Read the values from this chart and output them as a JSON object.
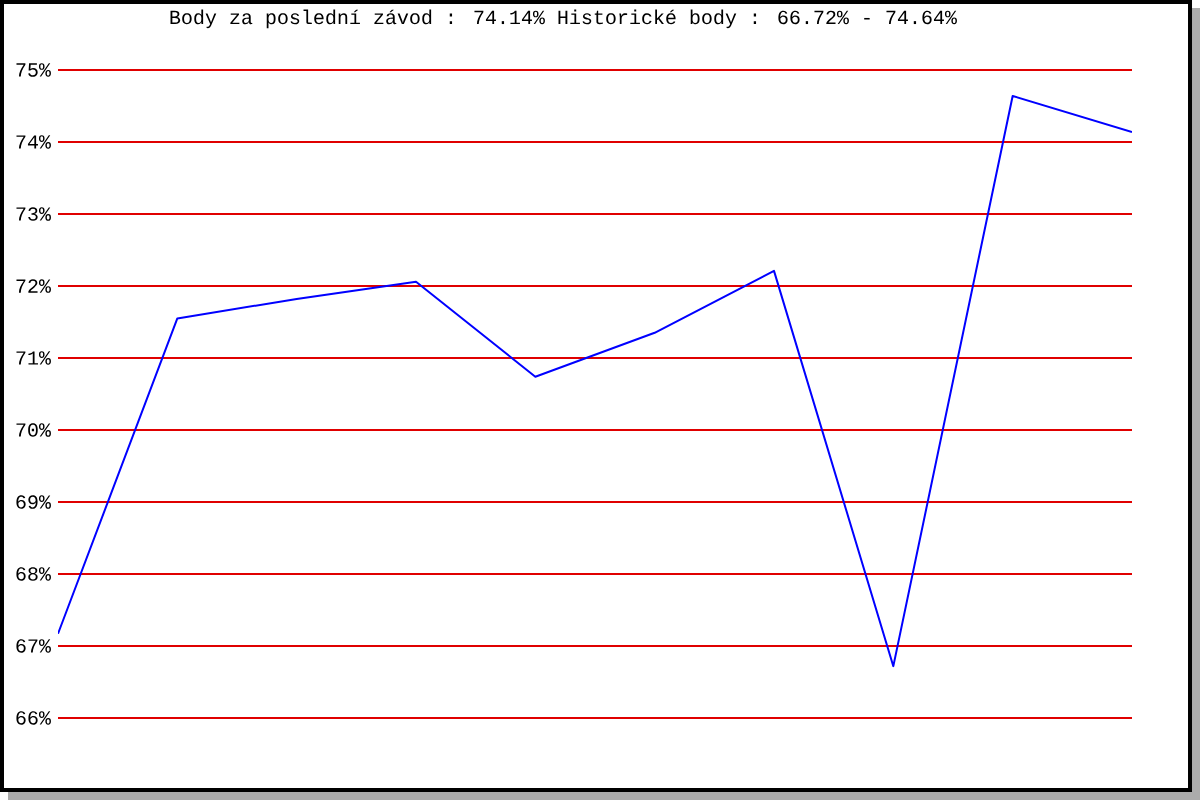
{
  "chart_data": {
    "type": "line",
    "title": "Body za poslední závod : 74.14%  Historické body : 66.72% - 74.64%",
    "categories": [
      null,
      null,
      null,
      null,
      null,
      null,
      null,
      null,
      null,
      null
    ],
    "series": [
      {
        "color": "#0000ff",
        "values": [
          67.17,
          71.55,
          71.82,
          72.06,
          70.74,
          71.35,
          72.21,
          66.72,
          74.64,
          74.14
        ]
      }
    ],
    "ylim": [
      66,
      75
    ],
    "yticks": [
      {
        "value": 66,
        "label": "66%"
      },
      {
        "value": 67,
        "label": "67%"
      },
      {
        "value": 68,
        "label": "68%"
      },
      {
        "value": 69,
        "label": "69%"
      },
      {
        "value": 70,
        "label": "70%"
      },
      {
        "value": 71,
        "label": "71%"
      },
      {
        "value": 72,
        "label": "72%"
      },
      {
        "value": 73,
        "label": "73%"
      },
      {
        "value": 74,
        "label": "74%"
      },
      {
        "value": 75,
        "label": "75%"
      }
    ],
    "grid": "y",
    "tick_labels": "y",
    "line_style": "solid"
  }
}
